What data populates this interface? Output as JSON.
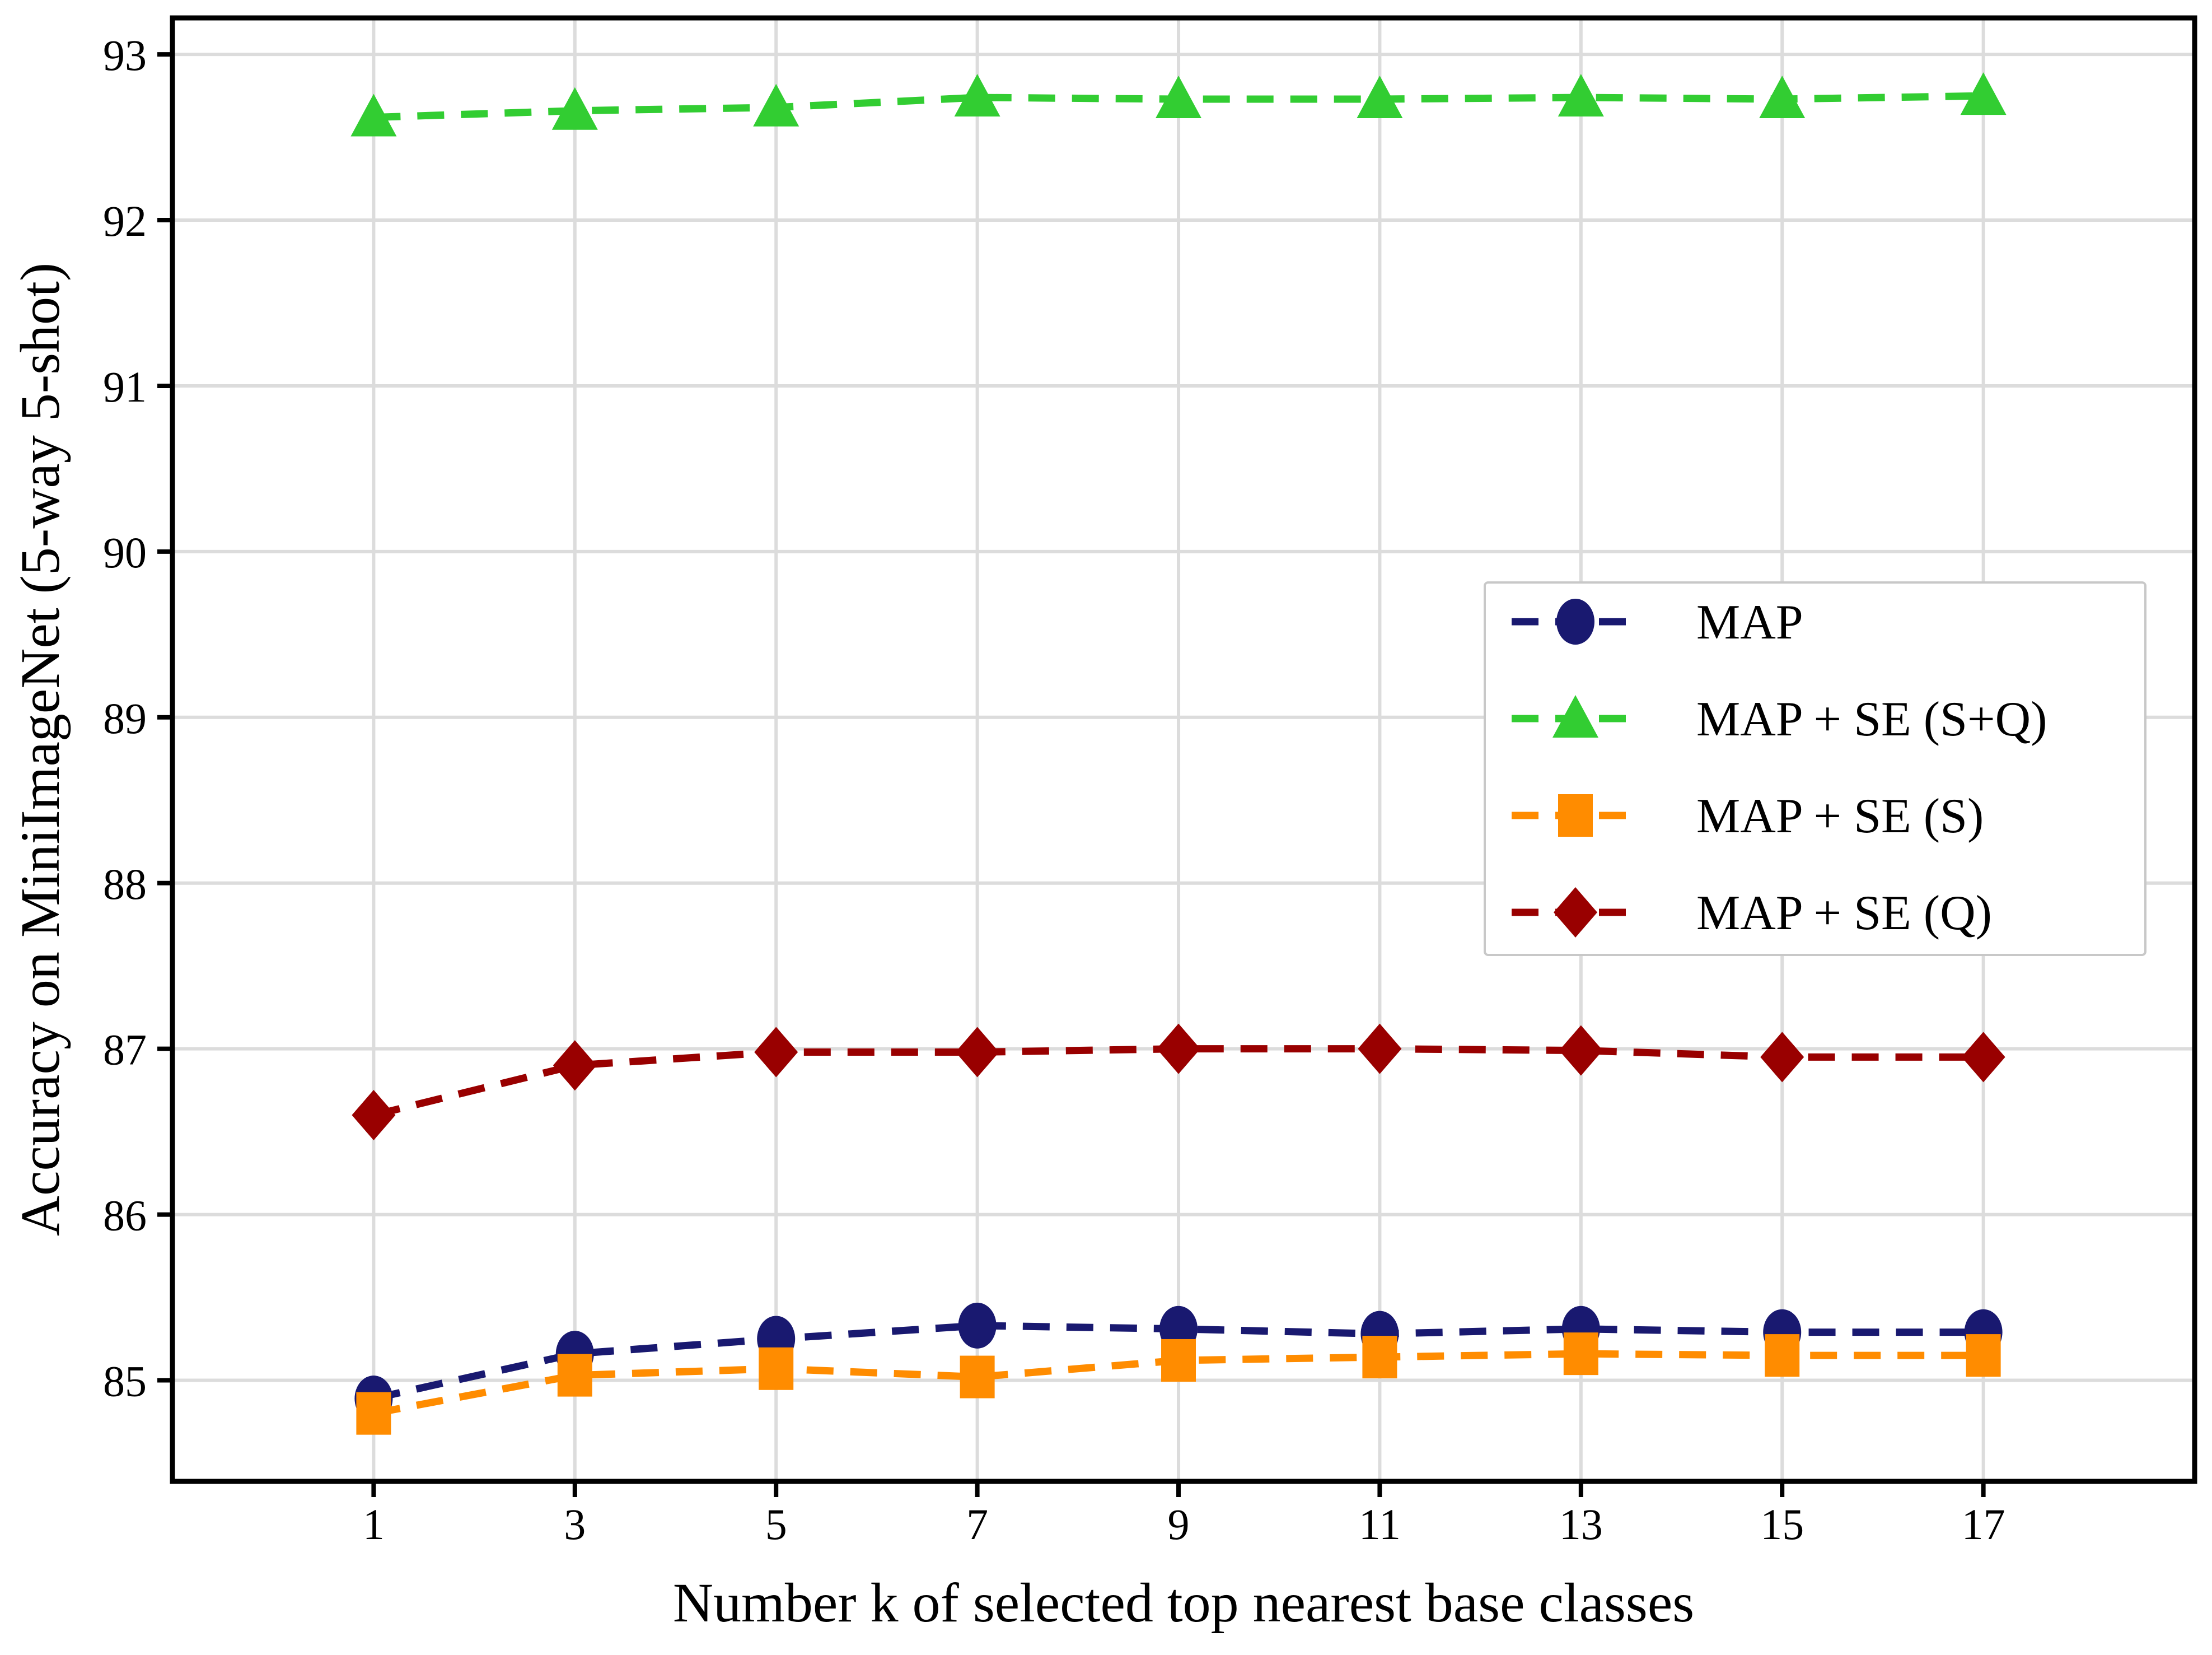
{
  "chart_data": {
    "type": "line",
    "xlabel": "Number k of selected top nearest base classes",
    "ylabel": "Accuracy on MiniImageNet (5-way 5-shot)",
    "x": [
      1,
      3,
      5,
      7,
      9,
      11,
      13,
      15,
      17
    ],
    "xticks": [
      1,
      3,
      5,
      7,
      9,
      11,
      13,
      15,
      17
    ],
    "yticks": [
      85,
      86,
      87,
      88,
      89,
      90,
      91,
      92,
      93
    ],
    "xlim": [
      -1.0,
      19.1
    ],
    "ylim": [
      84.39,
      93.22
    ],
    "grid": true,
    "legend_position": "right-inside",
    "series": [
      {
        "name": "MAP",
        "color": "#191970",
        "marker": "circle",
        "linestyle": "dashed",
        "values": [
          84.89,
          85.16,
          85.25,
          85.33,
          85.31,
          85.28,
          85.31,
          85.29,
          85.29
        ]
      },
      {
        "name": "MAP + SE (S+Q)",
        "color": "#32CD32",
        "marker": "triangle",
        "linestyle": "dashed",
        "values": [
          92.62,
          92.66,
          92.68,
          92.74,
          92.73,
          92.73,
          92.74,
          92.73,
          92.75
        ]
      },
      {
        "name": "MAP + SE (S)",
        "color": "#FF8C00",
        "marker": "square",
        "linestyle": "dashed",
        "values": [
          84.8,
          85.03,
          85.07,
          85.02,
          85.12,
          85.14,
          85.16,
          85.15,
          85.15
        ]
      },
      {
        "name": "MAP + SE (Q)",
        "color": "#990000",
        "marker": "diamond",
        "linestyle": "dashed",
        "values": [
          86.6,
          86.9,
          86.98,
          86.98,
          87.0,
          87.0,
          86.99,
          86.95,
          86.95
        ]
      }
    ],
    "colors": {
      "grid": "#dcdcdc",
      "spine": "#000000",
      "legend_border": "#c8c8c8",
      "background": "#ffffff"
    }
  }
}
